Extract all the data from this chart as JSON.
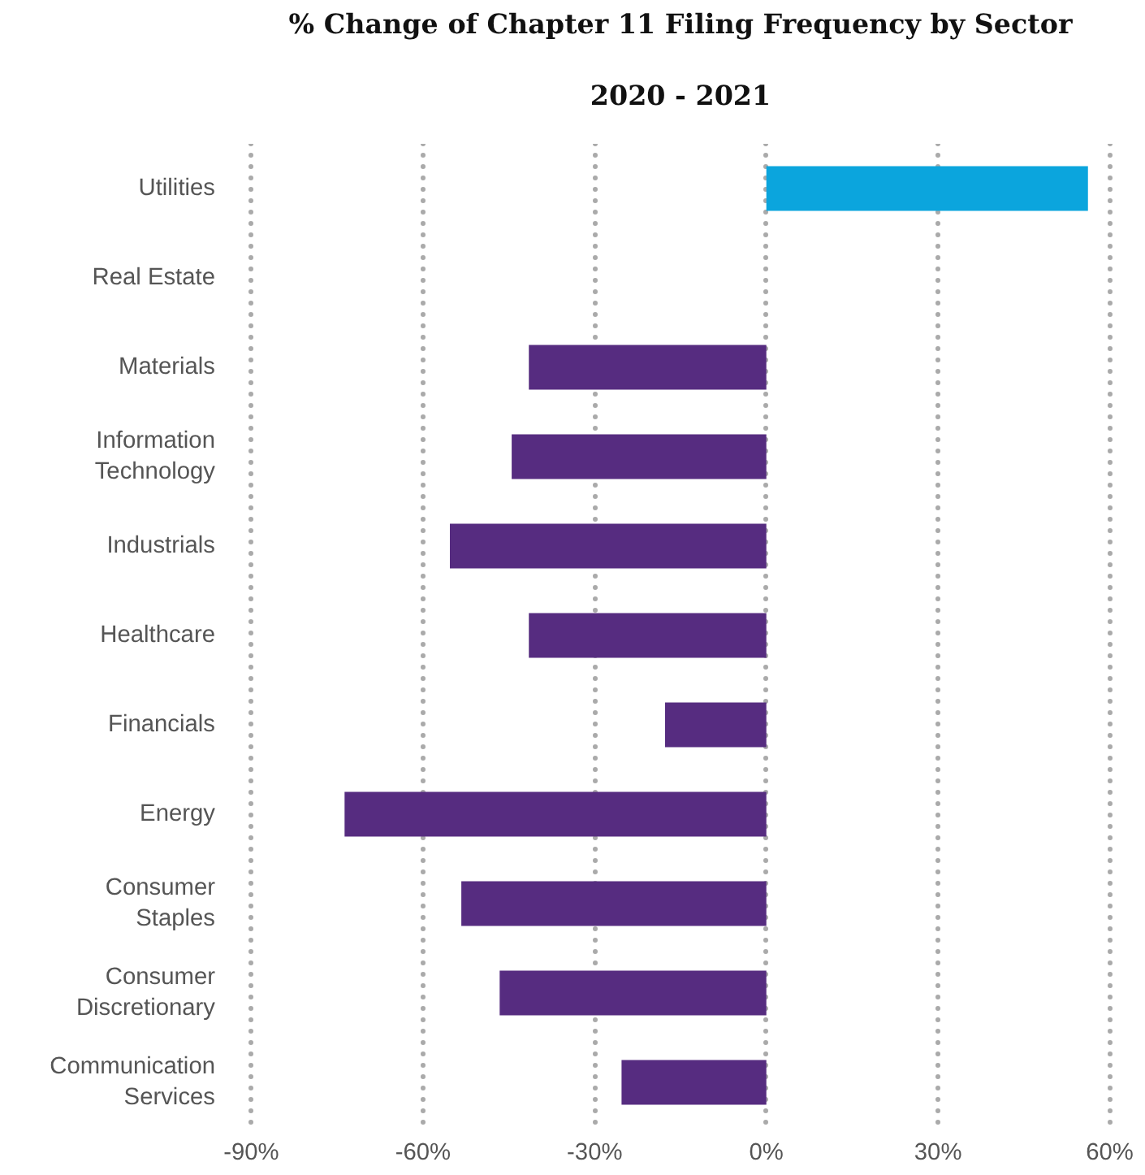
{
  "chart_data": {
    "type": "bar",
    "orientation": "horizontal",
    "title": "% Change of Chapter 11 Filing Frequency by Sector",
    "subtitle": "2020 - 2021",
    "categories": [
      "Utilities",
      "Real Estate",
      "Materials",
      "Information Technology",
      "Industrials",
      "Healthcare",
      "Financials",
      "Energy",
      "Consumer Staples",
      "Consumer Discretionary",
      "Communication Services"
    ],
    "values": [
      56.2,
      0,
      -41.5,
      -44.5,
      -55.3,
      -41.5,
      -17.7,
      -73.7,
      -53.3,
      -46.6,
      -25.3
    ],
    "colors": [
      "#0ba5dd",
      "#562c80",
      "#562c80",
      "#562c80",
      "#562c80",
      "#562c80",
      "#562c80",
      "#562c80",
      "#562c80",
      "#562c80",
      "#562c80"
    ],
    "xlim": [
      -90,
      60
    ],
    "xticks": [
      {
        "value": -90,
        "label": "-90%"
      },
      {
        "value": -60,
        "label": "-60%"
      },
      {
        "value": -30,
        "label": "-30%"
      },
      {
        "value": 0,
        "label": "0%"
      },
      {
        "value": 30,
        "label": "30%"
      },
      {
        "value": 60,
        "label": "60%"
      }
    ],
    "grid": "x"
  }
}
